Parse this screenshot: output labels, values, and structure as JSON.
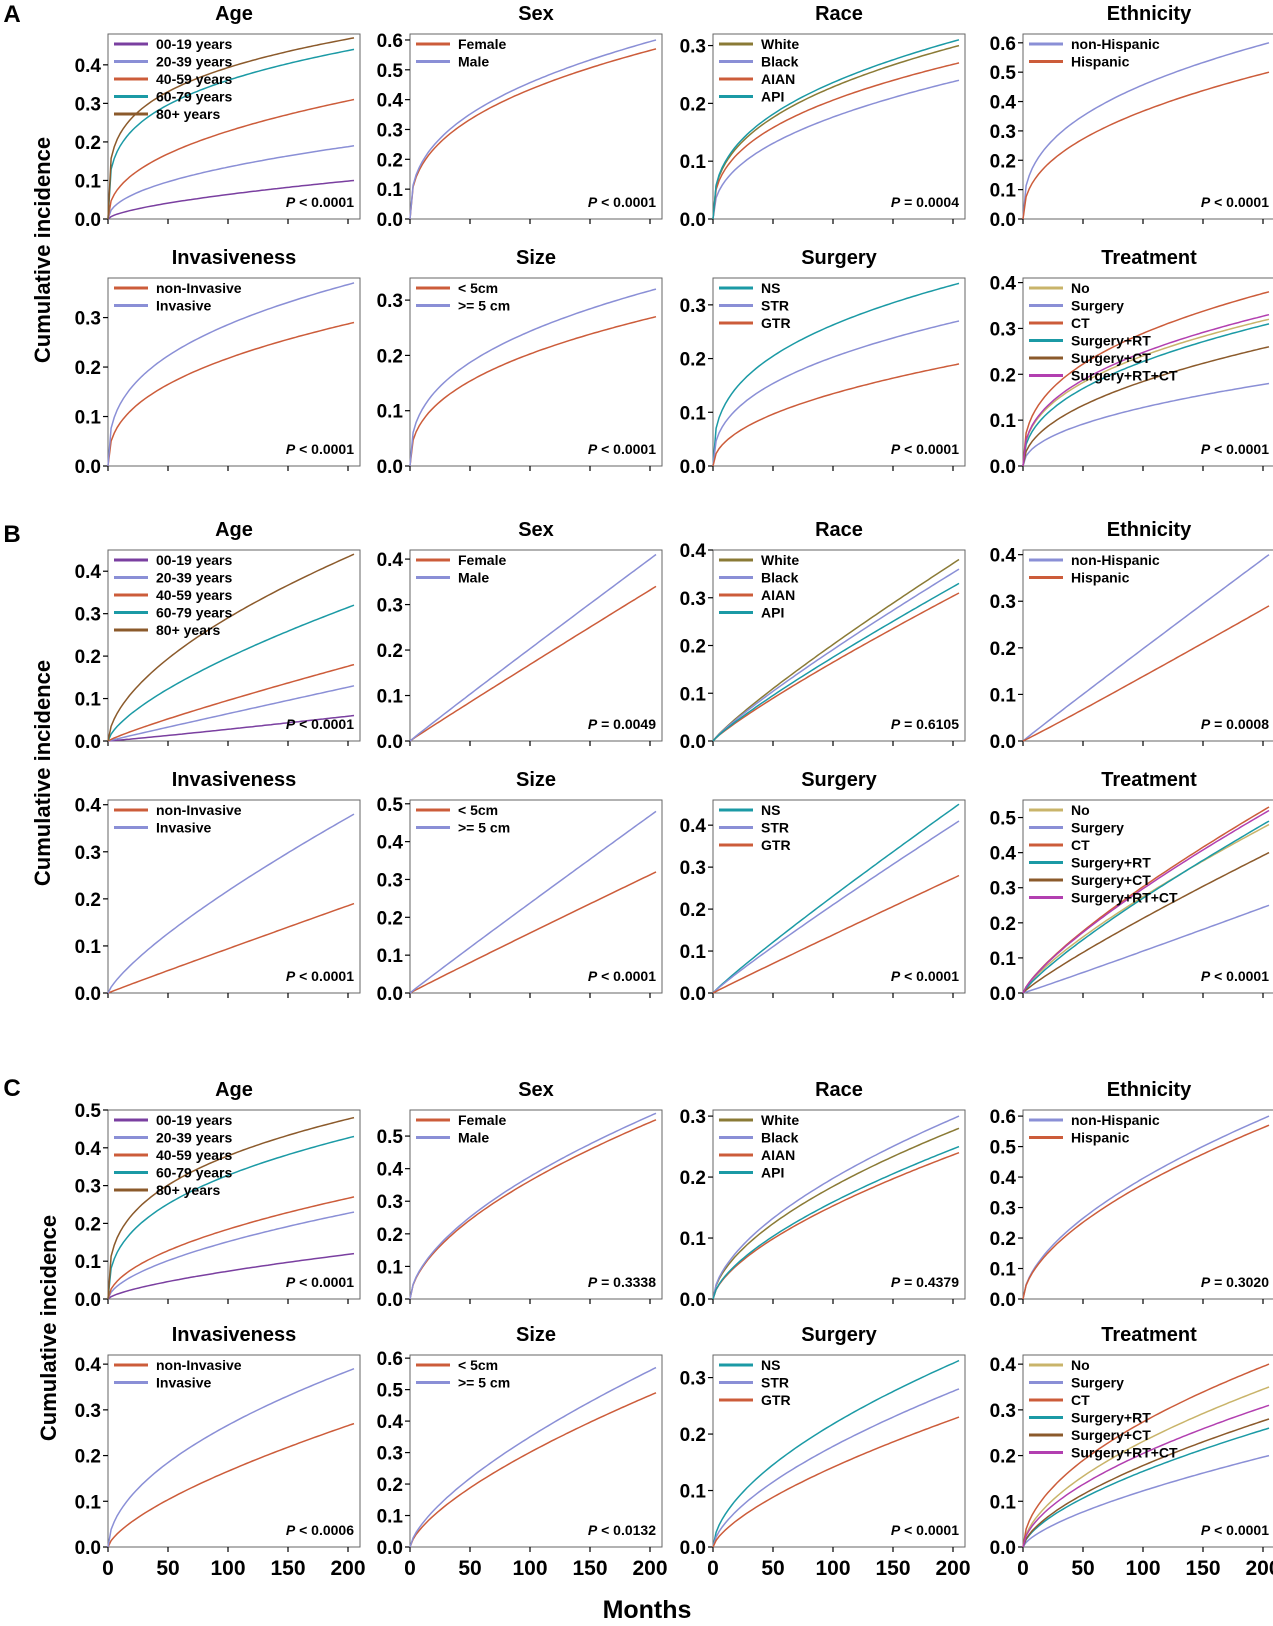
{
  "figure": {
    "ylabel": "Cumulative incidence",
    "xlabel": "Months",
    "x_ticks": [
      0,
      50,
      100,
      150,
      200
    ],
    "x_range": [
      0,
      210
    ],
    "sections": [
      {
        "label": "A"
      },
      {
        "label": "B"
      },
      {
        "label": "C"
      }
    ]
  },
  "colors": {
    "purple": "#7a3fa0",
    "lavender": "#8a8fd6",
    "orange": "#cc5c3a",
    "teal": "#1b9aa5",
    "brown": "#8b5a2b",
    "olive": "#8a7a35",
    "khaki": "#c9b46a",
    "magenta": "#b23fb0"
  },
  "chart_data": [
    {
      "type": "line",
      "section": "A",
      "row": 0,
      "col": 0,
      "title": "Age",
      "ylim": [
        0,
        0.48
      ],
      "yticks": [
        0.0,
        0.1,
        0.2,
        0.3,
        0.4
      ],
      "p": "< 0.0001",
      "series": [
        {
          "name": "00-19 years",
          "color": "#7a3fa0",
          "final": 0.1,
          "shape": 0.45
        },
        {
          "name": "20-39 years",
          "color": "#8a8fd6",
          "final": 0.19,
          "shape": 0.3
        },
        {
          "name": "40-59 years",
          "color": "#cc5c3a",
          "final": 0.31,
          "shape": 0.25
        },
        {
          "name": "60-79 years",
          "color": "#1b9aa5",
          "final": 0.44,
          "shape": 0.1
        },
        {
          "name": "80+    years",
          "color": "#8b5a2b",
          "final": 0.47,
          "shape": 0.07
        }
      ]
    },
    {
      "type": "line",
      "section": "A",
      "row": 0,
      "col": 1,
      "title": "Sex",
      "ylim": [
        0,
        0.62
      ],
      "yticks": [
        0.0,
        0.1,
        0.2,
        0.3,
        0.4,
        0.5,
        0.6
      ],
      "p": "< 0.0001",
      "series": [
        {
          "name": "Female",
          "color": "#cc5c3a",
          "final": 0.57,
          "shape": 0.2
        },
        {
          "name": "Male",
          "color": "#8a8fd6",
          "final": 0.6,
          "shape": 0.2
        }
      ]
    },
    {
      "type": "line",
      "section": "A",
      "row": 0,
      "col": 2,
      "title": "Race",
      "ylim": [
        0,
        0.32
      ],
      "yticks": [
        0.0,
        0.1,
        0.2,
        0.3
      ],
      "p": "= 0.0004",
      "series": [
        {
          "name": "White",
          "color": "#8a7a35",
          "final": 0.3,
          "shape": 0.2
        },
        {
          "name": "Black",
          "color": "#8a8fd6",
          "final": 0.24,
          "shape": 0.25
        },
        {
          "name": "AIAN",
          "color": "#cc5c3a",
          "final": 0.27,
          "shape": 0.2
        },
        {
          "name": "API",
          "color": "#1b9aa5",
          "final": 0.31,
          "shape": 0.2
        }
      ]
    },
    {
      "type": "line",
      "section": "A",
      "row": 0,
      "col": 3,
      "title": "Ethnicity",
      "ylim": [
        0,
        0.63
      ],
      "yticks": [
        0.0,
        0.1,
        0.2,
        0.3,
        0.4,
        0.5,
        0.6
      ],
      "p": "< 0.0001",
      "series": [
        {
          "name": "non-Hispanic",
          "color": "#8a8fd6",
          "final": 0.6,
          "shape": 0.2
        },
        {
          "name": "Hispanic",
          "color": "#cc5c3a",
          "final": 0.5,
          "shape": 0.25
        }
      ]
    },
    {
      "type": "line",
      "section": "A",
      "row": 1,
      "col": 0,
      "title": "Invasiveness",
      "ylim": [
        0,
        0.38
      ],
      "yticks": [
        0.0,
        0.1,
        0.2,
        0.3
      ],
      "p": "< 0.0001",
      "series": [
        {
          "name": "non-Invasive",
          "color": "#cc5c3a",
          "final": 0.29,
          "shape": 0.22
        },
        {
          "name": "Invasive",
          "color": "#8a8fd6",
          "final": 0.37,
          "shape": 0.18
        }
      ]
    },
    {
      "type": "line",
      "section": "A",
      "row": 1,
      "col": 1,
      "title": "Size",
      "ylim": [
        0,
        0.34
      ],
      "yticks": [
        0.0,
        0.1,
        0.2,
        0.3
      ],
      "p": "< 0.0001",
      "series": [
        {
          "name": "< 5cm",
          "color": "#cc5c3a",
          "final": 0.27,
          "shape": 0.22
        },
        {
          "name": ">= 5 cm",
          "color": "#8a8fd6",
          "final": 0.32,
          "shape": 0.2
        }
      ]
    },
    {
      "type": "line",
      "section": "A",
      "row": 1,
      "col": 2,
      "title": "Surgery",
      "ylim": [
        0,
        0.35
      ],
      "yticks": [
        0.0,
        0.1,
        0.2,
        0.3
      ],
      "p": "< 0.0001",
      "series": [
        {
          "name": "NS",
          "color": "#1b9aa5",
          "final": 0.34,
          "shape": 0.18
        },
        {
          "name": "STR",
          "color": "#8a8fd6",
          "final": 0.27,
          "shape": 0.22
        },
        {
          "name": "GTR",
          "color": "#cc5c3a",
          "final": 0.19,
          "shape": 0.3
        }
      ]
    },
    {
      "type": "line",
      "section": "A",
      "row": 1,
      "col": 3,
      "title": "Treatment",
      "ylim": [
        0,
        0.41
      ],
      "yticks": [
        0.0,
        0.1,
        0.2,
        0.3,
        0.4
      ],
      "p": "< 0.0001",
      "series": [
        {
          "name": "No",
          "color": "#c9b46a",
          "final": 0.32,
          "shape": 0.22
        },
        {
          "name": "Surgery",
          "color": "#8a8fd6",
          "final": 0.18,
          "shape": 0.3
        },
        {
          "name": "CT",
          "color": "#cc5c3a",
          "final": 0.38,
          "shape": 0.2
        },
        {
          "name": "Surgery+RT",
          "color": "#1b9aa5",
          "final": 0.31,
          "shape": 0.25
        },
        {
          "name": "Surgery+CT",
          "color": "#8b5a2b",
          "final": 0.26,
          "shape": 0.3
        },
        {
          "name": "Surgery+RT+CT",
          "color": "#b23fb0",
          "final": 0.33,
          "shape": 0.22
        }
      ]
    },
    {
      "type": "line",
      "section": "B",
      "row": 0,
      "col": 0,
      "title": "Age",
      "ylim": [
        0,
        0.45
      ],
      "yticks": [
        0.0,
        0.1,
        0.2,
        0.3,
        0.4
      ],
      "p": "< 0.0001",
      "series": [
        {
          "name": "00-19 years",
          "color": "#7a3fa0",
          "final": 0.06,
          "shape": 0.9
        },
        {
          "name": "20-39 years",
          "color": "#8a8fd6",
          "final": 0.13,
          "shape": 0.8
        },
        {
          "name": "40-59 years",
          "color": "#cc5c3a",
          "final": 0.18,
          "shape": 0.7
        },
        {
          "name": "60-79 years",
          "color": "#1b9aa5",
          "final": 0.32,
          "shape": 0.5
        },
        {
          "name": "80+    years",
          "color": "#8b5a2b",
          "final": 0.44,
          "shape": 0.4
        }
      ]
    },
    {
      "type": "line",
      "section": "B",
      "row": 0,
      "col": 1,
      "title": "Sex",
      "ylim": [
        0,
        0.42
      ],
      "yticks": [
        0.0,
        0.1,
        0.2,
        0.3,
        0.4
      ],
      "p": "= 0.0049",
      "series": [
        {
          "name": "Female",
          "color": "#cc5c3a",
          "final": 0.34,
          "shape": 0.8
        },
        {
          "name": "Male",
          "color": "#8a8fd6",
          "final": 0.41,
          "shape": 0.8
        }
      ]
    },
    {
      "type": "line",
      "section": "B",
      "row": 0,
      "col": 2,
      "title": "Race",
      "ylim": [
        0,
        0.4
      ],
      "yticks": [
        0.0,
        0.1,
        0.2,
        0.3,
        0.4
      ],
      "p": "= 0.6105",
      "series": [
        {
          "name": "White",
          "color": "#8a7a35",
          "final": 0.38,
          "shape": 0.7
        },
        {
          "name": "Black",
          "color": "#8a8fd6",
          "final": 0.36,
          "shape": 0.7
        },
        {
          "name": "AIAN",
          "color": "#cc5c3a",
          "final": 0.31,
          "shape": 0.7
        },
        {
          "name": "API",
          "color": "#1b9aa5",
          "final": 0.33,
          "shape": 0.7
        }
      ]
    },
    {
      "type": "line",
      "section": "B",
      "row": 0,
      "col": 3,
      "title": "Ethnicity",
      "ylim": [
        0,
        0.41
      ],
      "yticks": [
        0.0,
        0.1,
        0.2,
        0.3,
        0.4
      ],
      "p": "= 0.0008",
      "series": [
        {
          "name": "non-Hispanic",
          "color": "#8a8fd6",
          "final": 0.4,
          "shape": 0.8
        },
        {
          "name": "Hispanic",
          "color": "#cc5c3a",
          "final": 0.29,
          "shape": 0.85
        }
      ]
    },
    {
      "type": "line",
      "section": "B",
      "row": 1,
      "col": 0,
      "title": "Invasiveness",
      "ylim": [
        0,
        0.41
      ],
      "yticks": [
        0.0,
        0.1,
        0.2,
        0.3,
        0.4
      ],
      "p": "< 0.0001",
      "series": [
        {
          "name": "non-Invasive",
          "color": "#cc5c3a",
          "final": 0.19,
          "shape": 0.8
        },
        {
          "name": "Invasive",
          "color": "#8a8fd6",
          "final": 0.38,
          "shape": 0.6
        }
      ]
    },
    {
      "type": "line",
      "section": "B",
      "row": 1,
      "col": 1,
      "title": "Size",
      "ylim": [
        0,
        0.51
      ],
      "yticks": [
        0.0,
        0.1,
        0.2,
        0.3,
        0.4,
        0.5
      ],
      "p": "< 0.0001",
      "series": [
        {
          "name": "< 5cm",
          "color": "#cc5c3a",
          "final": 0.32,
          "shape": 0.8
        },
        {
          "name": ">= 5 cm",
          "color": "#8a8fd6",
          "final": 0.48,
          "shape": 0.8
        }
      ]
    },
    {
      "type": "line",
      "section": "B",
      "row": 1,
      "col": 2,
      "title": "Surgery",
      "ylim": [
        0,
        0.46
      ],
      "yticks": [
        0.0,
        0.1,
        0.2,
        0.3,
        0.4
      ],
      "p": "< 0.0001",
      "series": [
        {
          "name": "NS",
          "color": "#1b9aa5",
          "final": 0.45,
          "shape": 0.75
        },
        {
          "name": "STR",
          "color": "#8a8fd6",
          "final": 0.41,
          "shape": 0.75
        },
        {
          "name": "GTR",
          "color": "#cc5c3a",
          "final": 0.28,
          "shape": 0.8
        }
      ]
    },
    {
      "type": "line",
      "section": "B",
      "row": 1,
      "col": 3,
      "title": "Treatment",
      "ylim": [
        0,
        0.55
      ],
      "yticks": [
        0.0,
        0.1,
        0.2,
        0.3,
        0.4,
        0.5
      ],
      "p": "< 0.0001",
      "series": [
        {
          "name": "No",
          "color": "#c9b46a",
          "final": 0.48,
          "shape": 0.6
        },
        {
          "name": "Surgery",
          "color": "#8a8fd6",
          "final": 0.25,
          "shape": 0.85
        },
        {
          "name": "CT",
          "color": "#cc5c3a",
          "final": 0.53,
          "shape": 0.6
        },
        {
          "name": "Surgery+RT",
          "color": "#1b9aa5",
          "final": 0.49,
          "shape": 0.65
        },
        {
          "name": "Surgery+CT",
          "color": "#8b5a2b",
          "final": 0.4,
          "shape": 0.7
        },
        {
          "name": "Surgery+RT+CT",
          "color": "#b23fb0",
          "final": 0.52,
          "shape": 0.6
        }
      ]
    },
    {
      "type": "line",
      "section": "C",
      "row": 0,
      "col": 0,
      "title": "Age",
      "ylim": [
        0,
        0.5
      ],
      "yticks": [
        0.0,
        0.1,
        0.2,
        0.3,
        0.4,
        0.5
      ],
      "p": "< 0.0001",
      "series": [
        {
          "name": "00-19 years",
          "color": "#7a3fa0",
          "final": 0.12,
          "shape": 0.5
        },
        {
          "name": "20-39 years",
          "color": "#8a8fd6",
          "final": 0.23,
          "shape": 0.4
        },
        {
          "name": "40-59 years",
          "color": "#cc5c3a",
          "final": 0.27,
          "shape": 0.35
        },
        {
          "name": "60-79 years",
          "color": "#1b9aa5",
          "final": 0.43,
          "shape": 0.2
        },
        {
          "name": "80+    years",
          "color": "#8b5a2b",
          "final": 0.48,
          "shape": 0.15
        }
      ]
    },
    {
      "type": "line",
      "section": "C",
      "row": 0,
      "col": 1,
      "title": "Sex",
      "ylim": [
        0,
        0.58
      ],
      "yticks": [
        0.0,
        0.1,
        0.2,
        0.3,
        0.4,
        0.5
      ],
      "p": "= 0.3338",
      "series": [
        {
          "name": "Female",
          "color": "#cc5c3a",
          "final": 0.55,
          "shape": 0.4
        },
        {
          "name": "Male",
          "color": "#8a8fd6",
          "final": 0.57,
          "shape": 0.4
        }
      ]
    },
    {
      "type": "line",
      "section": "C",
      "row": 0,
      "col": 2,
      "title": "Race",
      "ylim": [
        0,
        0.31
      ],
      "yticks": [
        0.0,
        0.1,
        0.2,
        0.3
      ],
      "p": "= 0.4379",
      "series": [
        {
          "name": "White",
          "color": "#8a7a35",
          "final": 0.28,
          "shape": 0.4
        },
        {
          "name": "Black",
          "color": "#8a8fd6",
          "final": 0.3,
          "shape": 0.4
        },
        {
          "name": "AIAN",
          "color": "#cc5c3a",
          "final": 0.24,
          "shape": 0.45
        },
        {
          "name": "API",
          "color": "#1b9aa5",
          "final": 0.25,
          "shape": 0.45
        }
      ]
    },
    {
      "type": "line",
      "section": "C",
      "row": 0,
      "col": 3,
      "title": "Ethnicity",
      "ylim": [
        0,
        0.62
      ],
      "yticks": [
        0.0,
        0.1,
        0.2,
        0.3,
        0.4,
        0.5,
        0.6
      ],
      "p": "= 0.3020",
      "series": [
        {
          "name": "non-Hispanic",
          "color": "#8a8fd6",
          "final": 0.6,
          "shape": 0.4
        },
        {
          "name": "Hispanic",
          "color": "#cc5c3a",
          "final": 0.57,
          "shape": 0.4
        }
      ]
    },
    {
      "type": "line",
      "section": "C",
      "row": 1,
      "col": 0,
      "title": "Invasiveness",
      "ylim": [
        0,
        0.42
      ],
      "yticks": [
        0.0,
        0.1,
        0.2,
        0.3,
        0.4
      ],
      "p": "< 0.0006",
      "series": [
        {
          "name": "non-Invasive",
          "color": "#cc5c3a",
          "final": 0.27,
          "shape": 0.5
        },
        {
          "name": "Invasive",
          "color": "#8a8fd6",
          "final": 0.39,
          "shape": 0.35
        }
      ]
    },
    {
      "type": "line",
      "section": "C",
      "row": 1,
      "col": 1,
      "title": "Size",
      "ylim": [
        0,
        0.61
      ],
      "yticks": [
        0.0,
        0.1,
        0.2,
        0.3,
        0.4,
        0.5,
        0.6
      ],
      "p": "< 0.0132",
      "series": [
        {
          "name": "< 5cm",
          "color": "#cc5c3a",
          "final": 0.49,
          "shape": 0.5
        },
        {
          "name": ">= 5 cm",
          "color": "#8a8fd6",
          "final": 0.57,
          "shape": 0.5
        }
      ]
    },
    {
      "type": "line",
      "section": "C",
      "row": 1,
      "col": 2,
      "title": "Surgery",
      "ylim": [
        0,
        0.34
      ],
      "yticks": [
        0.0,
        0.1,
        0.2,
        0.3
      ],
      "p": "< 0.0001",
      "series": [
        {
          "name": "NS",
          "color": "#1b9aa5",
          "final": 0.33,
          "shape": 0.4
        },
        {
          "name": "STR",
          "color": "#8a8fd6",
          "final": 0.28,
          "shape": 0.45
        },
        {
          "name": "GTR",
          "color": "#cc5c3a",
          "final": 0.23,
          "shape": 0.5
        }
      ]
    },
    {
      "type": "line",
      "section": "C",
      "row": 1,
      "col": 3,
      "title": "Treatment",
      "ylim": [
        0,
        0.42
      ],
      "yticks": [
        0.0,
        0.1,
        0.2,
        0.3,
        0.4
      ],
      "p": "< 0.0001",
      "series": [
        {
          "name": "No",
          "color": "#c9b46a",
          "final": 0.35,
          "shape": 0.4
        },
        {
          "name": "Surgery",
          "color": "#8a8fd6",
          "final": 0.2,
          "shape": 0.5
        },
        {
          "name": "CT",
          "color": "#cc5c3a",
          "final": 0.4,
          "shape": 0.35
        },
        {
          "name": "Surgery+RT",
          "color": "#1b9aa5",
          "final": 0.26,
          "shape": 0.45
        },
        {
          "name": "Surgery+CT",
          "color": "#8b5a2b",
          "final": 0.28,
          "shape": 0.45
        },
        {
          "name": "Surgery+RT+CT",
          "color": "#b23fb0",
          "final": 0.31,
          "shape": 0.4
        }
      ]
    }
  ]
}
